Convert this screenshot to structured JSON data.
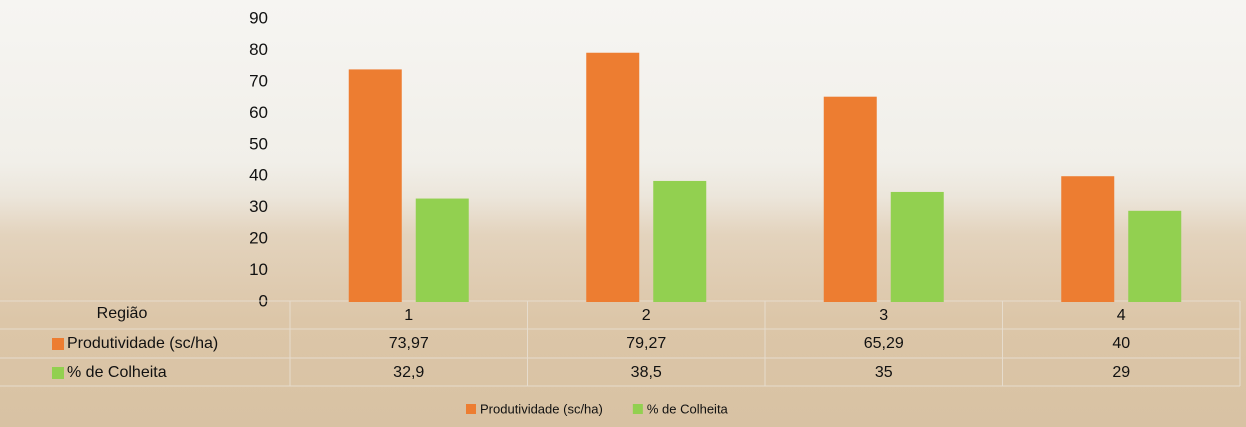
{
  "chart_data": {
    "type": "bar",
    "x_label": "Região",
    "categories": [
      "1",
      "2",
      "3",
      "4"
    ],
    "series": [
      {
        "name": "Produtividade (sc/ha)",
        "color": "#ed7d31",
        "values": [
          73.97,
          79.27,
          65.29,
          40
        ],
        "value_labels": [
          "73,97",
          "79,27",
          "65,29",
          "40"
        ]
      },
      {
        "name": "% de Colheita",
        "color": "#92d050",
        "values": [
          32.9,
          38.5,
          35,
          29
        ],
        "value_labels": [
          "32,9",
          "38,5",
          "35",
          "29"
        ]
      }
    ],
    "ylim": [
      0,
      90
    ],
    "yticks": [
      0,
      10,
      20,
      30,
      40,
      50,
      60,
      70,
      80,
      90
    ],
    "grid": false
  }
}
